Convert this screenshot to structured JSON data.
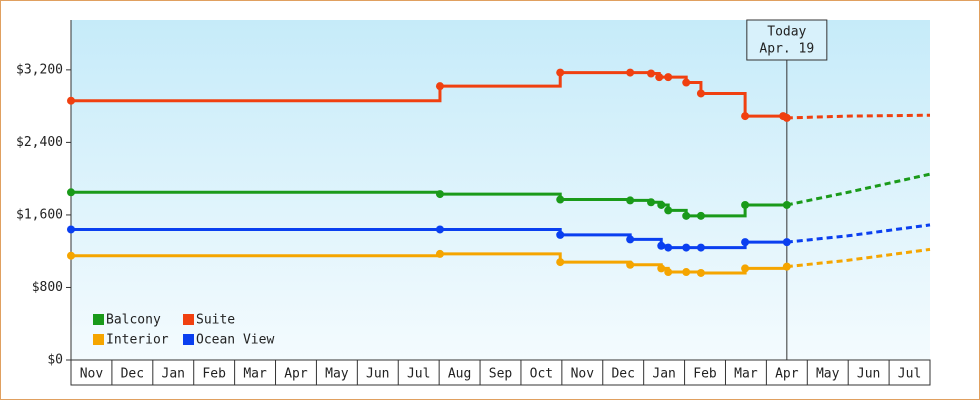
{
  "chart_data": {
    "type": "step-line",
    "xlim": [
      0,
      21
    ],
    "xticks": [
      {
        "value": 0.5,
        "label": "Nov"
      },
      {
        "value": 1.5,
        "label": "Dec"
      },
      {
        "value": 2.5,
        "label": "Jan"
      },
      {
        "value": 3.5,
        "label": "Feb"
      },
      {
        "value": 4.5,
        "label": "Mar"
      },
      {
        "value": 5.5,
        "label": "Apr"
      },
      {
        "value": 6.5,
        "label": "May"
      },
      {
        "value": 7.5,
        "label": "Jun"
      },
      {
        "value": 8.5,
        "label": "Jul"
      },
      {
        "value": 9.5,
        "label": "Aug"
      },
      {
        "value": 10.5,
        "label": "Sep"
      },
      {
        "value": 11.5,
        "label": "Oct"
      },
      {
        "value": 12.5,
        "label": "Nov"
      },
      {
        "value": 13.5,
        "label": "Dec"
      },
      {
        "value": 14.5,
        "label": "Jan"
      },
      {
        "value": 15.5,
        "label": "Feb"
      },
      {
        "value": 16.5,
        "label": "Mar"
      },
      {
        "value": 17.5,
        "label": "Apr"
      },
      {
        "value": 18.5,
        "label": "May"
      },
      {
        "value": 19.5,
        "label": "Jun"
      },
      {
        "value": 20.5,
        "label": "Jul"
      }
    ],
    "ylim": [
      0,
      3750
    ],
    "yticks": [
      {
        "value": 0,
        "label": "$0"
      },
      {
        "value": 800,
        "label": "$800"
      },
      {
        "value": 1600,
        "label": "$1,600"
      },
      {
        "value": 2400,
        "label": "$2,400"
      },
      {
        "value": 3200,
        "label": "$3,200"
      }
    ],
    "today": {
      "x": 17.5,
      "label": [
        "Today",
        "Apr. 19"
      ]
    },
    "series": [
      {
        "name": "Balcony",
        "color": "#1a9a1a",
        "x": [
          0,
          9.02,
          11.96,
          13.67,
          14.18,
          14.43,
          14.6,
          15.04,
          15.4,
          16.48,
          17.5
        ],
        "values": [
          1850,
          1830,
          1770,
          1760,
          1740,
          1710,
          1650,
          1590,
          1590,
          1710,
          1710
        ],
        "forecast_x": [
          17.5,
          19,
          21
        ],
        "forecast_values": [
          1710,
          1850,
          2050
        ]
      },
      {
        "name": "Suite",
        "color": "#f04010",
        "x": [
          0,
          9.02,
          11.96,
          13.67,
          14.18,
          14.38,
          14.6,
          15.04,
          15.4,
          16.48,
          17.41,
          17.5
        ],
        "values": [
          2860,
          3020,
          3170,
          3170,
          3160,
          3120,
          3120,
          3060,
          2940,
          2690,
          2690,
          2670
        ],
        "forecast_x": [
          17.5,
          19,
          21
        ],
        "forecast_values": [
          2670,
          2690,
          2700
        ]
      },
      {
        "name": "Interior",
        "color": "#f5a500",
        "x": [
          0,
          9.02,
          11.96,
          13.67,
          14.43,
          14.6,
          15.04,
          15.4,
          16.48,
          17.5
        ],
        "values": [
          1150,
          1170,
          1080,
          1050,
          1010,
          970,
          970,
          960,
          1010,
          1030
        ],
        "forecast_x": [
          17.5,
          19,
          21
        ],
        "forecast_values": [
          1030,
          1100,
          1220
        ]
      },
      {
        "name": "Ocean View",
        "color": "#0a3ff0",
        "x": [
          0,
          9.02,
          11.96,
          13.67,
          14.43,
          14.6,
          15.04,
          15.4,
          16.48,
          17.5
        ],
        "values": [
          1440,
          1440,
          1380,
          1330,
          1260,
          1240,
          1240,
          1240,
          1300,
          1300
        ],
        "forecast_x": [
          17.5,
          19,
          21
        ],
        "forecast_values": [
          1300,
          1370,
          1490
        ]
      }
    ]
  }
}
